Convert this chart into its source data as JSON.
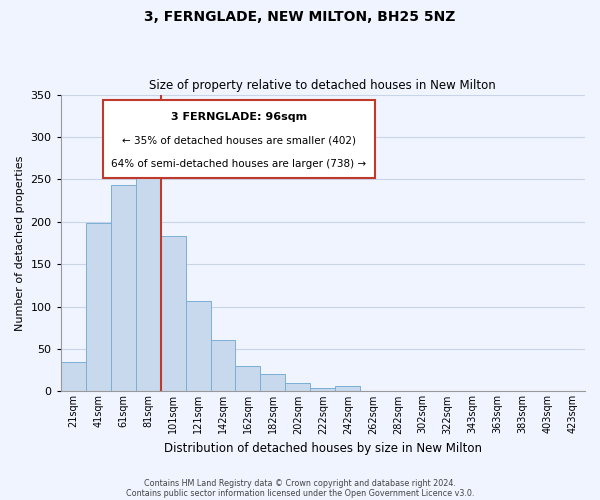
{
  "title": "3, FERNGLADE, NEW MILTON, BH25 5NZ",
  "subtitle": "Size of property relative to detached houses in New Milton",
  "xlabel": "Distribution of detached houses by size in New Milton",
  "ylabel": "Number of detached properties",
  "bar_color": "#c8d9ee",
  "highlight_color": "#c0392b",
  "bar_edge_color": "#7bafd4",
  "categories": [
    "21sqm",
    "41sqm",
    "61sqm",
    "81sqm",
    "101sqm",
    "121sqm",
    "142sqm",
    "162sqm",
    "182sqm",
    "202sqm",
    "222sqm",
    "242sqm",
    "262sqm",
    "282sqm",
    "302sqm",
    "322sqm",
    "343sqm",
    "363sqm",
    "383sqm",
    "403sqm",
    "423sqm"
  ],
  "values": [
    35,
    198,
    243,
    258,
    183,
    106,
    61,
    30,
    21,
    10,
    4,
    6,
    0,
    0,
    0,
    0,
    1,
    0,
    0,
    0,
    1
  ],
  "ylim": [
    0,
    350
  ],
  "yticks": [
    0,
    50,
    100,
    150,
    200,
    250,
    300,
    350
  ],
  "annotation_title": "3 FERNGLADE: 96sqm",
  "annotation_line1": "← 35% of detached houses are smaller (402)",
  "annotation_line2": "64% of semi-detached houses are larger (738) →",
  "vline_x_index": 3,
  "footer1": "Contains HM Land Registry data © Crown copyright and database right 2024.",
  "footer2": "Contains public sector information licensed under the Open Government Licence v3.0.",
  "background_color": "#f0f4ff",
  "grid_color": "#c8d4e8"
}
